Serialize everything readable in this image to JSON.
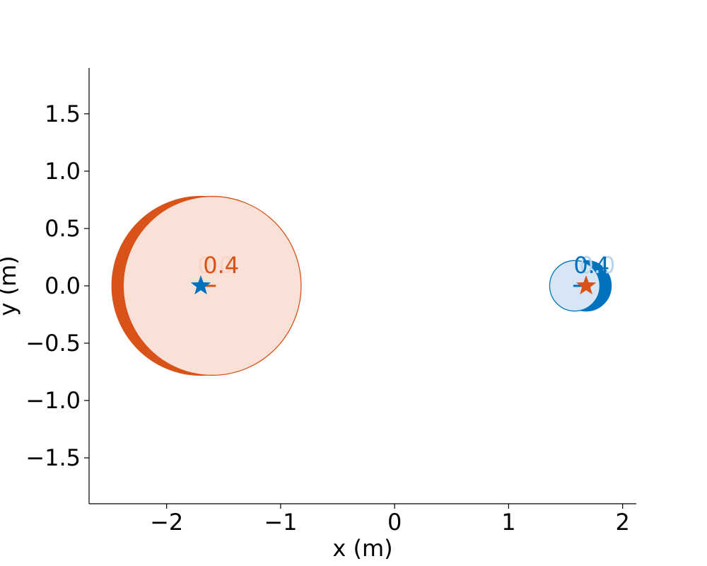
{
  "chart_data": {
    "type": "scatter",
    "title": "",
    "xlabel": "x (m)",
    "ylabel": "y (m)",
    "xlim": [
      -2.68,
      2.12
    ],
    "ylim": [
      -1.9,
      1.9
    ],
    "xticks": [
      -2,
      -1,
      0,
      1,
      2
    ],
    "xtick_labels": [
      "−2",
      "−1",
      "0",
      "1",
      "2"
    ],
    "yticks": [
      -1.5,
      -1.0,
      -0.5,
      0.0,
      0.5,
      1.0,
      1.5
    ],
    "ytick_labels": [
      "−1.5",
      "−1.0",
      "−0.5",
      "0.0",
      "0.5",
      "1.0",
      "1.5"
    ],
    "grid": false,
    "circles": [
      {
        "name": "",
        "cx": -1.7,
        "cy": 0.0,
        "r": 0.78,
        "fill": "#d95319",
        "fill_opacity": 1.0,
        "stroke": "#d95319"
      },
      {
        "name": "",
        "cx": -1.6,
        "cy": 0.0,
        "r": 0.78,
        "fill": "#f9e1d8",
        "fill_opacity": 1.0,
        "stroke": "#d95319"
      },
      {
        "name": "",
        "cx": 1.68,
        "cy": 0.0,
        "r": 0.22,
        "fill": "#0072bd",
        "fill_opacity": 1.0,
        "stroke": "#0072bd"
      },
      {
        "name": "",
        "cx": 1.58,
        "cy": 0.0,
        "r": 0.22,
        "fill": "#d6e6f4",
        "fill_opacity": 1.0,
        "stroke": "#0072bd"
      }
    ],
    "dashes": [
      {
        "x": -1.63,
        "y": 0.0,
        "color": "#d95319"
      },
      {
        "x": 1.63,
        "y": 0.0,
        "color": "#0072bd"
      }
    ],
    "stars": [
      {
        "x": -1.7,
        "y": 0.0,
        "color": "#0072bd"
      },
      {
        "x": 1.68,
        "y": 0.0,
        "color": "#d95319"
      }
    ],
    "annotations": [
      {
        "text": "0.0",
        "x": -1.73,
        "y": 0.11,
        "color": "#f9d4c6"
      },
      {
        "text": "0.4",
        "x": -1.68,
        "y": 0.11,
        "color": "#d95319"
      },
      {
        "text": "0.0",
        "x": 1.62,
        "y": 0.11,
        "color": "#b9d3ea"
      },
      {
        "text": "0.4",
        "x": 1.57,
        "y": 0.11,
        "color": "#0072bd"
      }
    ]
  }
}
